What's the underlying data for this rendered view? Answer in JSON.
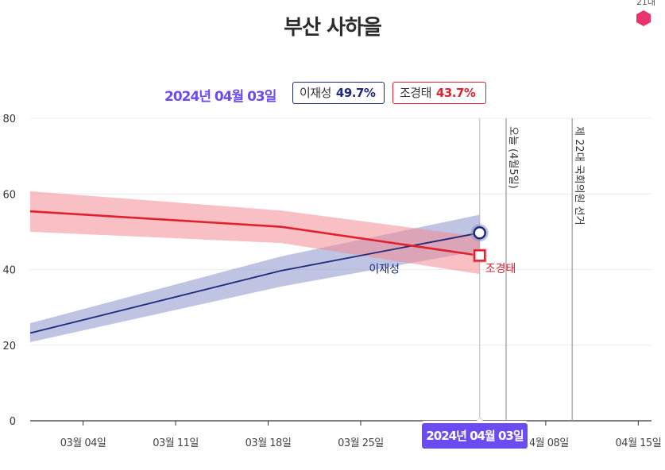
{
  "title": "부산 사하을",
  "party_corner": {
    "label": "21대",
    "icon": "hexagon-icon",
    "color": "#e8336d"
  },
  "legend": {
    "date": "2024년 04월 03일",
    "items": [
      {
        "name": "이재성",
        "value": "49.7%",
        "color": "#1f2a7a"
      },
      {
        "name": "조경태",
        "value": "43.7%",
        "color": "#e0212e"
      }
    ]
  },
  "badge": "2024년 04월 03일",
  "chart_data": {
    "type": "line",
    "x_unit": "date",
    "xlim": [
      "2024-02-29",
      "2024-04-16"
    ],
    "ylim": [
      0,
      80
    ],
    "yticks": [
      0,
      20,
      40,
      60,
      80
    ],
    "xticks": [
      {
        "date": "2024-03-04",
        "label": "03월 04일"
      },
      {
        "date": "2024-03-11",
        "label": "03월 11일"
      },
      {
        "date": "2024-03-18",
        "label": "03월 18일"
      },
      {
        "date": "2024-03-25",
        "label": "03월 25일"
      },
      {
        "date": "2024-04-08",
        "label": "04월 08일"
      },
      {
        "date": "2024-04-15",
        "label": "04월 15일"
      }
    ],
    "grid": true,
    "series": [
      {
        "name": "이재성",
        "color": "#1f2a7a",
        "band_color": "#8a94cc",
        "dates": [
          "2024-02-29",
          "2024-03-19",
          "2024-04-03"
        ],
        "values": [
          23.2,
          39.7,
          49.7
        ],
        "lower": [
          20.8,
          35.5,
          45.0
        ],
        "upper": [
          25.8,
          43.5,
          54.5
        ],
        "end_label": "이재성"
      },
      {
        "name": "조경태",
        "color": "#e0212e",
        "band_color": "#f28a93",
        "dates": [
          "2024-02-29",
          "2024-03-19",
          "2024-04-03"
        ],
        "values": [
          55.4,
          51.3,
          43.7
        ],
        "lower": [
          50.0,
          47.0,
          38.8
        ],
        "upper": [
          60.7,
          55.6,
          48.7
        ],
        "end_label": "조경태"
      }
    ],
    "events": [
      {
        "date": "2024-04-05",
        "label": "오늘 (4월5일)"
      },
      {
        "date": "2024-04-10",
        "label": "제 22대 국회의원 선거"
      }
    ],
    "highlight_date": "2024-04-03"
  }
}
